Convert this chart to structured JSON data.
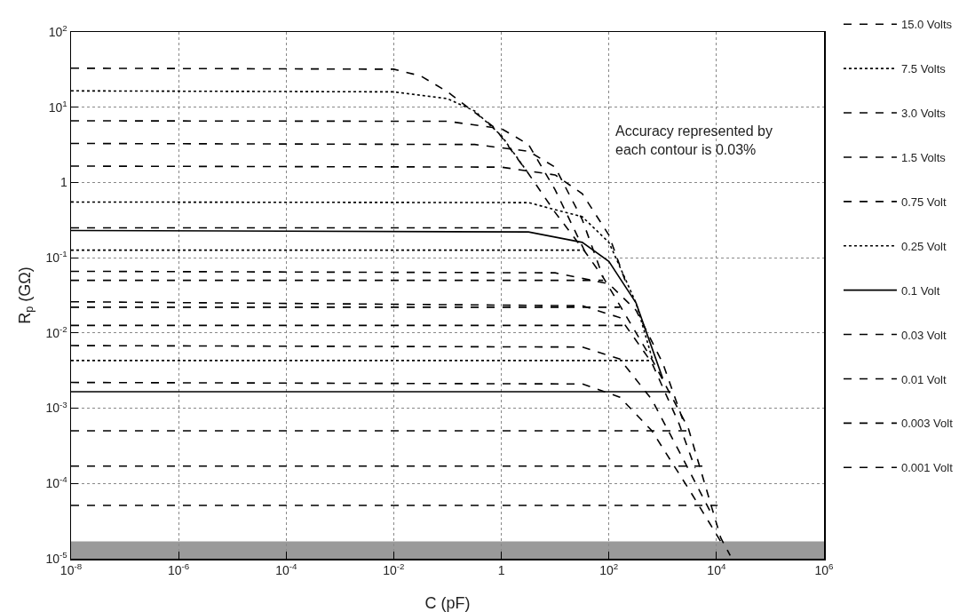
{
  "chart_data": {
    "type": "line",
    "xlabel": "C (pF)",
    "ylabel": "R$_{p}$ (GΩ)",
    "log": "xy",
    "grid": true,
    "legend": "right",
    "xlim": [
      1e-08,
      1000000.0
    ],
    "ylim": [
      1e-05,
      100
    ],
    "xticks": [
      {
        "value": 1e-08,
        "label": "10$^{-8}$"
      },
      {
        "value": 1e-06,
        "label": "10$^{-6}$"
      },
      {
        "value": 0.0001,
        "label": "10$^{-4}$"
      },
      {
        "value": 0.01,
        "label": "10$^{-2}$"
      },
      1,
      {
        "value": 100,
        "label": "10$^{2}$"
      },
      {
        "value": 10000,
        "label": "10$^{4}$"
      },
      {
        "value": 1000000,
        "label": "10$^{6}$"
      }
    ],
    "yticks": [
      {
        "value": 1e-05,
        "label": "10$^{-5}$"
      },
      {
        "value": 0.0001,
        "label": "10$^{-4}$"
      },
      {
        "value": 0.001,
        "label": "10$^{-3}$"
      },
      {
        "value": 0.01,
        "label": "10$^{-2}$"
      },
      {
        "value": 0.1,
        "label": "10$^{-1}$"
      },
      1,
      {
        "value": 10,
        "label": "10$^{1}$"
      },
      {
        "value": 100,
        "label": "10$^{2}$"
      }
    ],
    "annotations": [
      "Accuracy represented by\neach contour is 0.03%"
    ],
    "bands": [
      {
        "axis": "y",
        "from": 1e-05,
        "to": 1.7e-05,
        "color": "#9a9a9a"
      }
    ],
    "series": [
      {
        "name": "15.0 Volts",
        "color": "#000000",
        "line_style": "dashed",
        "x": [
          1e-08,
          0.01,
          0.032,
          0.1,
          0.74,
          3,
          10,
          36,
          78,
          660,
          3000,
          12000,
          18000
        ],
        "values": [
          33,
          32,
          26,
          16,
          5.4,
          1.4,
          0.4,
          0.12,
          0.055,
          0.0042,
          0.00054,
          1.9e-05,
          1.1e-05
        ]
      },
      {
        "name": "7.5 Volts",
        "color": "#000000",
        "line_style": "dotted",
        "x": [
          1e-08,
          0.01,
          0.1,
          0.32,
          1,
          3
        ],
        "values": [
          16.5,
          16,
          13,
          8.9,
          4.2,
          1.4
        ]
      },
      {
        "name": "3.0 Volts",
        "color": "#000000",
        "line_style": "dashed",
        "x": [
          1e-08,
          0.1,
          1,
          3.2,
          10,
          36
        ],
        "values": [
          6.6,
          6.5,
          5.2,
          3.2,
          0.8,
          0.12
        ]
      },
      {
        "name": "1.5 Volts",
        "color": "#000000",
        "line_style": "dashed",
        "x": [
          1e-08,
          0.32,
          3.2,
          10,
          32,
          78
        ],
        "values": [
          3.3,
          3.2,
          2.6,
          1.6,
          0.32,
          0.055
        ]
      },
      {
        "name": "0.75 Volt",
        "color": "#000000",
        "line_style": "dashed",
        "x": [
          1e-08,
          1,
          10,
          32,
          100,
          200
        ],
        "values": [
          1.65,
          1.6,
          1.26,
          0.71,
          0.2,
          0.05
        ]
      },
      {
        "name": "0.25 Volt",
        "color": "#000000",
        "line_style": "dotted",
        "x": [
          1e-08,
          3.2,
          32,
          100,
          320,
          660
        ],
        "values": [
          0.55,
          0.54,
          0.35,
          0.16,
          0.025,
          0.0042
        ]
      },
      {
        "name": "0.1 Volt",
        "color": "#000000",
        "line_style": "solid",
        "x": [
          1e-08,
          3.2,
          32,
          100,
          320,
          1000
        ],
        "values": [
          0.23,
          0.22,
          0.16,
          0.089,
          0.025,
          0.0025
        ]
      },
      {
        "name": "0.03 Volt",
        "color": "#000000",
        "line_style": "dashed",
        "x": [
          1e-08,
          10,
          100,
          320,
          1000,
          2500
        ],
        "values": [
          0.066,
          0.063,
          0.045,
          0.02,
          0.004,
          0.00063
        ]
      },
      {
        "name": "0.01 Volt",
        "color": "#000000",
        "line_style": "dashed",
        "x": [
          1e-08,
          32,
          160,
          630,
          2000,
          4000
        ],
        "values": [
          0.026,
          0.023,
          0.016,
          0.004,
          0.00063,
          0.00016
        ]
      },
      {
        "name": "0.003 Volt",
        "color": "#000000",
        "line_style": "dashed",
        "x": [
          1e-08,
          32,
          160,
          630,
          2500,
          8000
        ],
        "values": [
          0.0068,
          0.0065,
          0.0045,
          0.0013,
          0.0002,
          4e-05
        ]
      },
      {
        "name": "0.001 Volt",
        "color": "#000000",
        "line_style": "dashed",
        "x": [
          1e-08,
          32,
          160,
          630,
          3200,
          12600
        ],
        "values": [
          0.0022,
          0.0021,
          0.0014,
          0.0005,
          8e-05,
          1.6e-05
        ]
      },
      {
        "color": "#000000",
        "line_style": "dashed",
        "x": [
          1e-08,
          13.5
        ],
        "values": [
          0.25,
          0.25
        ]
      },
      {
        "color": "#000000",
        "line_style": "dotted",
        "x": [
          1e-08,
          29
        ],
        "values": [
          0.126,
          0.126
        ]
      },
      {
        "color": "#000000",
        "line_style": "dashed",
        "x": [
          1e-08,
          78
        ],
        "values": [
          0.05,
          0.05
        ]
      },
      {
        "color": "#000000",
        "line_style": "dashed",
        "x": [
          1e-08,
          160
        ],
        "values": [
          0.022,
          0.022
        ]
      },
      {
        "color": "#000000",
        "line_style": "dashed",
        "x": [
          1e-08,
          240
        ],
        "values": [
          0.0126,
          0.0126
        ]
      },
      {
        "color": "#000000",
        "line_style": "dotted",
        "x": [
          1e-08,
          660
        ],
        "values": [
          0.0043,
          0.0043
        ]
      },
      {
        "color": "#000000",
        "line_style": "solid",
        "x": [
          1e-08,
          1400
        ],
        "values": [
          0.00166,
          0.00166
        ]
      },
      {
        "color": "#000000",
        "line_style": "dashed",
        "x": [
          1e-08,
          3000
        ],
        "values": [
          0.0005,
          0.0005
        ]
      },
      {
        "color": "#000000",
        "line_style": "dashed",
        "x": [
          1e-08,
          5600
        ],
        "values": [
          0.00017,
          0.00017
        ]
      },
      {
        "color": "#000000",
        "line_style": "dashed",
        "x": [
          1e-08,
          10500
        ],
        "values": [
          5.1e-05,
          5.1e-05
        ]
      }
    ]
  }
}
